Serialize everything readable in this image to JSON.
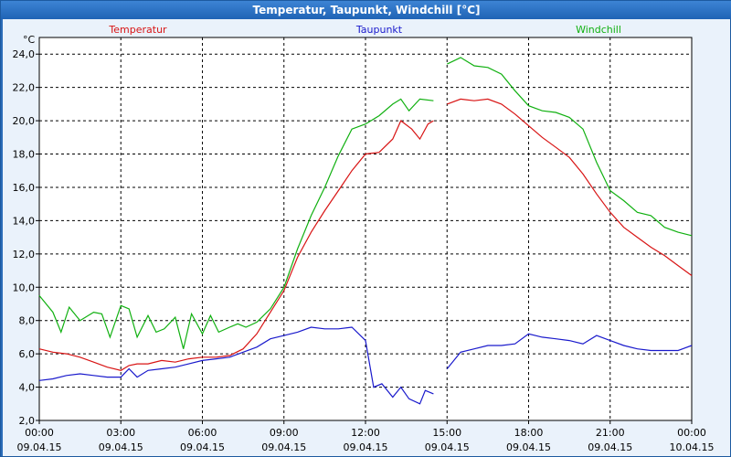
{
  "window": {
    "title": "Temperatur, Taupunkt, Windchill [°C]"
  },
  "chart_data": {
    "type": "line",
    "title": "Temperatur, Taupunkt, Windchill [°C]",
    "ylabel": "°C",
    "ylim": [
      2.0,
      25.0
    ],
    "grid": true,
    "legend_placement": "top",
    "y_ticks": [
      "2,0",
      "4,0",
      "6,0",
      "8,0",
      "10,0",
      "12,0",
      "14,0",
      "16,0",
      "18,0",
      "20,0",
      "22,0",
      "24,0"
    ],
    "x_ticks": [
      {
        "time": "00:00",
        "date": "09.04.15"
      },
      {
        "time": "03:00",
        "date": "09.04.15"
      },
      {
        "time": "06:00",
        "date": "09.04.15"
      },
      {
        "time": "09:00",
        "date": "09.04.15"
      },
      {
        "time": "12:00",
        "date": "09.04.15"
      },
      {
        "time": "15:00",
        "date": "09.04.15"
      },
      {
        "time": "18:00",
        "date": "09.04.15"
      },
      {
        "time": "21:00",
        "date": "09.04.15"
      },
      {
        "time": "00:00",
        "date": "10.04.15"
      }
    ],
    "series": [
      {
        "name": "Temperatur",
        "color": "#d81414",
        "segments": [
          [
            [
              0,
              6.3
            ],
            [
              0.5,
              6.1
            ],
            [
              1,
              6.0
            ],
            [
              1.5,
              5.8
            ],
            [
              2,
              5.5
            ],
            [
              2.5,
              5.2
            ],
            [
              3,
              5.0
            ],
            [
              3.3,
              5.3
            ],
            [
              3.6,
              5.4
            ],
            [
              4,
              5.4
            ],
            [
              4.5,
              5.6
            ],
            [
              5,
              5.5
            ],
            [
              5.5,
              5.7
            ],
            [
              6,
              5.8
            ],
            [
              6.5,
              5.8
            ],
            [
              7,
              5.9
            ],
            [
              7.5,
              6.3
            ],
            [
              8,
              7.2
            ],
            [
              8.5,
              8.5
            ],
            [
              9,
              9.8
            ],
            [
              9.5,
              11.8
            ],
            [
              10,
              13.3
            ],
            [
              10.5,
              14.6
            ],
            [
              11,
              15.8
            ],
            [
              11.5,
              17.0
            ],
            [
              12,
              18.0
            ],
            [
              12.5,
              18.1
            ],
            [
              13,
              18.9
            ],
            [
              13.3,
              20.0
            ],
            [
              13.7,
              19.5
            ],
            [
              14,
              18.9
            ],
            [
              14.3,
              19.8
            ],
            [
              14.5,
              20.0
            ]
          ],
          [
            [
              15,
              21.0
            ],
            [
              15.5,
              21.3
            ],
            [
              16,
              21.2
            ],
            [
              16.5,
              21.3
            ],
            [
              17,
              21.0
            ],
            [
              17.5,
              20.4
            ],
            [
              18,
              19.7
            ],
            [
              18.5,
              19.0
            ],
            [
              19,
              18.4
            ],
            [
              19.5,
              17.8
            ],
            [
              20,
              16.8
            ],
            [
              20.5,
              15.6
            ],
            [
              21,
              14.5
            ],
            [
              21.5,
              13.6
            ],
            [
              22,
              13.0
            ],
            [
              22.5,
              12.4
            ],
            [
              23,
              11.9
            ],
            [
              23.5,
              11.3
            ],
            [
              24,
              10.7
            ]
          ]
        ]
      },
      {
        "name": "Taupunkt",
        "color": "#1a1acc",
        "segments": [
          [
            [
              0,
              4.4
            ],
            [
              0.5,
              4.5
            ],
            [
              1,
              4.7
            ],
            [
              1.5,
              4.8
            ],
            [
              2,
              4.7
            ],
            [
              2.5,
              4.6
            ],
            [
              3,
              4.6
            ],
            [
              3.3,
              5.1
            ],
            [
              3.6,
              4.6
            ],
            [
              4,
              5.0
            ],
            [
              4.5,
              5.1
            ],
            [
              5,
              5.2
            ],
            [
              5.5,
              5.4
            ],
            [
              6,
              5.6
            ],
            [
              6.5,
              5.7
            ],
            [
              7,
              5.8
            ],
            [
              7.5,
              6.1
            ],
            [
              8,
              6.4
            ],
            [
              8.5,
              6.9
            ],
            [
              9,
              7.1
            ],
            [
              9.5,
              7.3
            ],
            [
              10,
              7.6
            ],
            [
              10.5,
              7.5
            ],
            [
              11,
              7.5
            ],
            [
              11.5,
              7.6
            ],
            [
              12,
              6.8
            ],
            [
              12.3,
              4.0
            ],
            [
              12.6,
              4.2
            ],
            [
              13,
              3.4
            ],
            [
              13.3,
              4.0
            ],
            [
              13.6,
              3.3
            ],
            [
              14,
              3.0
            ],
            [
              14.2,
              3.8
            ],
            [
              14.5,
              3.6
            ]
          ],
          [
            [
              15,
              5.1
            ],
            [
              15.5,
              6.1
            ],
            [
              16,
              6.3
            ],
            [
              16.5,
              6.5
            ],
            [
              17,
              6.5
            ],
            [
              17.5,
              6.6
            ],
            [
              18,
              7.2
            ],
            [
              18.5,
              7.0
            ],
            [
              19,
              6.9
            ],
            [
              19.5,
              6.8
            ],
            [
              20,
              6.6
            ],
            [
              20.5,
              7.1
            ],
            [
              21,
              6.8
            ],
            [
              21.5,
              6.5
            ],
            [
              22,
              6.3
            ],
            [
              22.5,
              6.2
            ],
            [
              23,
              6.2
            ],
            [
              23.5,
              6.2
            ],
            [
              24,
              6.5
            ]
          ]
        ]
      },
      {
        "name": "Windchill",
        "color": "#10b010",
        "segments": [
          [
            [
              0,
              9.5
            ],
            [
              0.5,
              8.5
            ],
            [
              0.8,
              7.3
            ],
            [
              1.1,
              8.8
            ],
            [
              1.5,
              8.0
            ],
            [
              2,
              8.5
            ],
            [
              2.3,
              8.4
            ],
            [
              2.6,
              7.0
            ],
            [
              3,
              8.9
            ],
            [
              3.3,
              8.7
            ],
            [
              3.6,
              7.0
            ],
            [
              4,
              8.3
            ],
            [
              4.3,
              7.3
            ],
            [
              4.6,
              7.5
            ],
            [
              5,
              8.2
            ],
            [
              5.3,
              6.3
            ],
            [
              5.6,
              8.4
            ],
            [
              6,
              7.2
            ],
            [
              6.3,
              8.3
            ],
            [
              6.6,
              7.3
            ],
            [
              7,
              7.6
            ],
            [
              7.3,
              7.8
            ],
            [
              7.6,
              7.6
            ],
            [
              8,
              7.9
            ],
            [
              8.5,
              8.7
            ],
            [
              9,
              10.0
            ],
            [
              9.5,
              12.3
            ],
            [
              10,
              14.3
            ],
            [
              10.5,
              16.0
            ],
            [
              11,
              17.9
            ],
            [
              11.5,
              19.5
            ],
            [
              12,
              19.8
            ],
            [
              12.5,
              20.3
            ],
            [
              13,
              21.0
            ],
            [
              13.3,
              21.3
            ],
            [
              13.6,
              20.6
            ],
            [
              14,
              21.3
            ],
            [
              14.5,
              21.2
            ]
          ],
          [
            [
              15,
              23.4
            ],
            [
              15.5,
              23.8
            ],
            [
              16,
              23.3
            ],
            [
              16.5,
              23.2
            ],
            [
              17,
              22.8
            ],
            [
              17.5,
              21.8
            ],
            [
              18,
              20.9
            ],
            [
              18.5,
              20.6
            ],
            [
              19,
              20.5
            ],
            [
              19.5,
              20.2
            ],
            [
              20,
              19.5
            ],
            [
              20.5,
              17.5
            ],
            [
              21,
              15.8
            ],
            [
              21.5,
              15.2
            ],
            [
              22,
              14.5
            ],
            [
              22.5,
              14.3
            ],
            [
              23,
              13.6
            ],
            [
              23.5,
              13.3
            ],
            [
              24,
              13.1
            ]
          ]
        ]
      }
    ]
  }
}
